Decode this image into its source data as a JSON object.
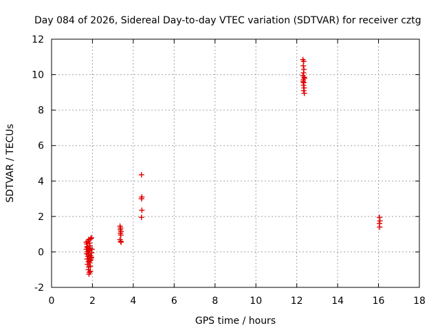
{
  "chart_data": {
    "type": "scatter",
    "title": "Day 084 of 2026, Sidereal Day-to-day VTEC variation (SDTVAR) for receiver cztg",
    "xlabel": "GPS time / hours",
    "ylabel": "SDTVAR / TECUs",
    "xlim": [
      0,
      18
    ],
    "ylim": [
      -2,
      12
    ],
    "xticks": [
      0,
      2,
      4,
      6,
      8,
      10,
      12,
      14,
      16,
      18
    ],
    "yticks": [
      -2,
      0,
      2,
      4,
      6,
      8,
      10,
      12
    ],
    "grid": true,
    "marker": "+",
    "marker_color": "#e00000",
    "series": [
      {
        "name": "SDTVAR",
        "points": [
          [
            1.7,
            0.55
          ],
          [
            1.72,
            0.45
          ],
          [
            1.74,
            0.3
          ],
          [
            1.7,
            0.15
          ],
          [
            1.75,
            0.0
          ],
          [
            1.72,
            -0.1
          ],
          [
            1.78,
            -0.25
          ],
          [
            1.74,
            -0.4
          ],
          [
            1.8,
            -0.55
          ],
          [
            1.76,
            -0.7
          ],
          [
            1.82,
            -0.85
          ],
          [
            1.8,
            -1.0
          ],
          [
            1.85,
            -1.15
          ],
          [
            1.83,
            -1.25
          ],
          [
            1.9,
            -1.1
          ],
          [
            1.78,
            0.6
          ],
          [
            1.82,
            0.7
          ],
          [
            1.86,
            0.5
          ],
          [
            1.88,
            0.35
          ],
          [
            1.9,
            0.2
          ],
          [
            1.84,
            0.1
          ],
          [
            1.92,
            0.75
          ],
          [
            1.95,
            0.8
          ],
          [
            1.9,
            -0.2
          ],
          [
            1.93,
            -0.35
          ],
          [
            1.88,
            -0.5
          ],
          [
            1.96,
            -0.05
          ],
          [
            1.98,
            0.15
          ],
          [
            1.76,
            0.25
          ],
          [
            1.8,
            -0.15
          ],
          [
            1.86,
            -0.6
          ],
          [
            1.92,
            -0.45
          ],
          [
            1.84,
            0.05
          ],
          [
            1.9,
            -0.8
          ],
          [
            1.95,
            -0.3
          ],
          [
            3.35,
            1.45
          ],
          [
            3.38,
            1.35
          ],
          [
            3.36,
            1.25
          ],
          [
            3.4,
            1.15
          ],
          [
            3.37,
            1.05
          ],
          [
            3.39,
            0.95
          ],
          [
            3.35,
            0.7
          ],
          [
            3.38,
            0.6
          ],
          [
            3.4,
            0.55
          ],
          [
            4.4,
            4.35
          ],
          [
            4.42,
            3.1
          ],
          [
            4.4,
            3.0
          ],
          [
            4.42,
            2.35
          ],
          [
            4.4,
            1.95
          ],
          [
            12.3,
            10.85
          ],
          [
            12.34,
            10.75
          ],
          [
            12.32,
            10.5
          ],
          [
            12.35,
            10.3
          ],
          [
            12.33,
            10.1
          ],
          [
            12.3,
            9.95
          ],
          [
            12.36,
            9.85
          ],
          [
            12.32,
            9.7
          ],
          [
            12.35,
            9.55
          ],
          [
            12.33,
            9.4
          ],
          [
            12.36,
            9.25
          ],
          [
            12.34,
            9.1
          ],
          [
            12.37,
            8.95
          ],
          [
            12.31,
            9.6
          ],
          [
            12.38,
            9.8
          ],
          [
            16.05,
            1.95
          ],
          [
            16.07,
            1.75
          ],
          [
            16.05,
            1.6
          ],
          [
            16.06,
            1.4
          ]
        ]
      }
    ]
  }
}
